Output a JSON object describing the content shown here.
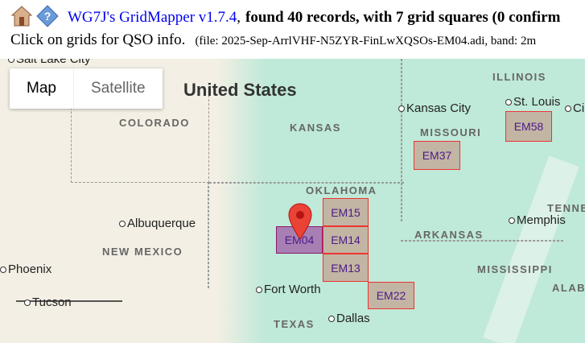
{
  "header": {
    "home_icon": "house-icon",
    "help_icon": "help-diamond-icon",
    "app_link": "WG7J's GridMapper v1.7.4",
    "separator": ",",
    "summary": "found 40 records, with 7 grid squares (0 confirm",
    "instructions": "Click on grids for QSO info.",
    "file_info": "(file: 2025-Sep-ArrlVHF-N5ZYR-FinLwXQSOs-EM04.adi, band: 2m"
  },
  "map": {
    "type_toggle": {
      "map": "Map",
      "satellite": "Satellite",
      "selected": "Map"
    },
    "country": "United States",
    "states": [
      "COLORADO",
      "KANSAS",
      "MISSOURI",
      "ILLINOIS",
      "NEW MEXICO",
      "OKLAHOMA",
      "ARKANSAS",
      "TENNE",
      "MISSISSIPPI",
      "ALAB",
      "TEXAS"
    ],
    "cities": [
      "Salt Lake City",
      "Kansas City",
      "St. Louis",
      "Cin",
      "Albuquerque",
      "Memphis",
      "Phoenix",
      "Fort Worth",
      "Dallas",
      "Tucson"
    ],
    "grids": [
      {
        "label": "EM04",
        "home": true
      },
      {
        "label": "EM15"
      },
      {
        "label": "EM14"
      },
      {
        "label": "EM13"
      },
      {
        "label": "EM22"
      },
      {
        "label": "EM37"
      },
      {
        "label": "EM58"
      }
    ],
    "marker_icon": "map-pin-icon",
    "colors": {
      "grid_fill": "#c8826e",
      "grid_border": "#ee3333",
      "home_fill": "#962896",
      "label": "#4b1a8a"
    }
  }
}
